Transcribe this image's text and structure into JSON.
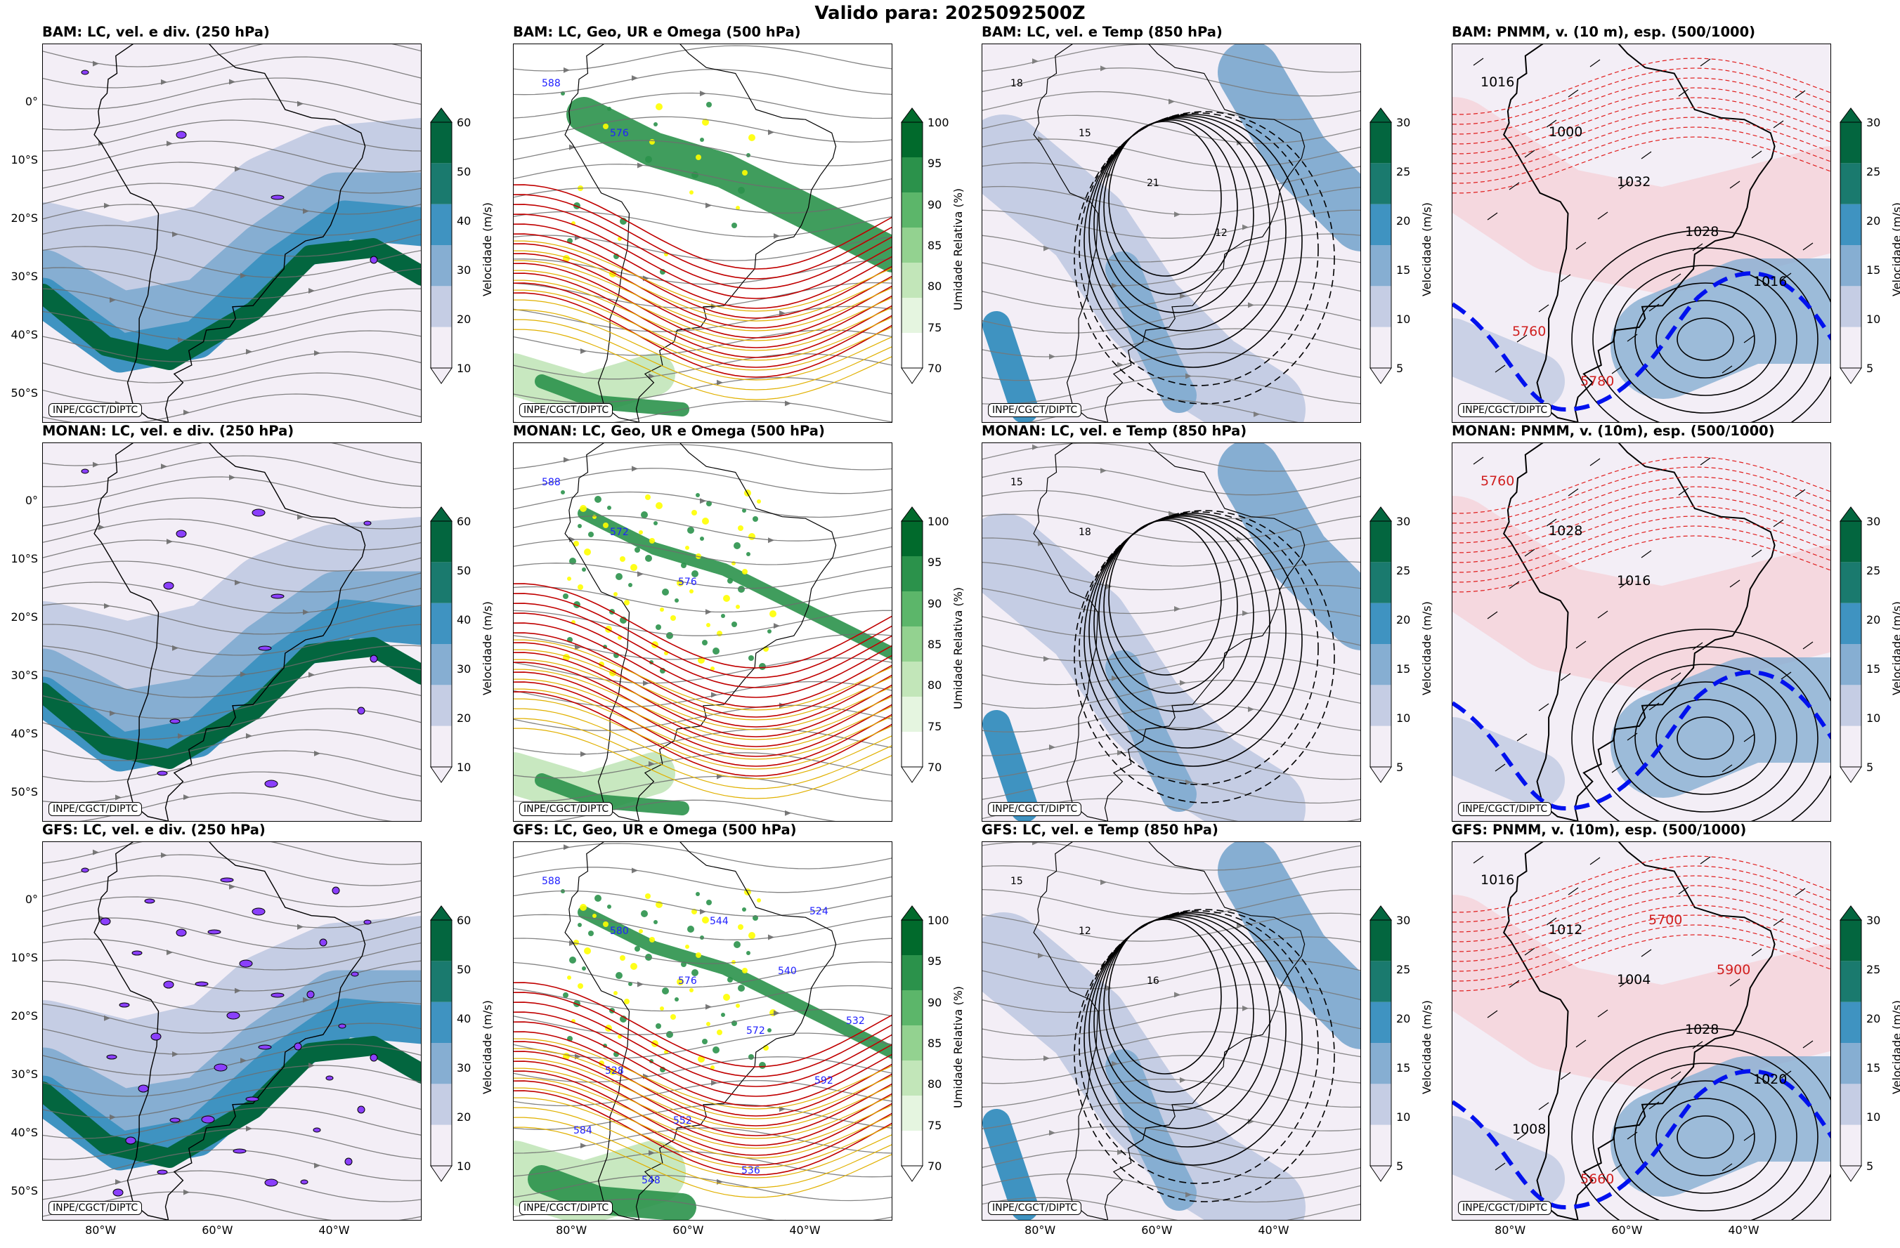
{
  "suptitle": "Valido para: 2025092500Z",
  "credit": "INPE/CGCT/DIPTC",
  "lat_ticks": [
    "0°",
    "10°S",
    "20°S",
    "30°S",
    "40°S",
    "50°S"
  ],
  "lon_ticks": [
    "80°W",
    "60°W",
    "40°W"
  ],
  "panels": [
    {
      "title": "BAM: LC, vel. e div. (250 hPa)",
      "kind": "wind250"
    },
    {
      "title": "BAM: LC, Geo, UR e Omega (500 hPa)",
      "kind": "geo500"
    },
    {
      "title": "BAM: LC, vel. e Temp (850 hPa)",
      "kind": "temp850"
    },
    {
      "title": "BAM: PNMM, v. (10 m), esp. (500/1000)",
      "kind": "pnmm"
    },
    {
      "title": "MONAN: LC, vel. e div. (250 hPa)",
      "kind": "wind250"
    },
    {
      "title": "MONAN: LC, Geo, UR e Omega (500 hPa)",
      "kind": "geo500"
    },
    {
      "title": "MONAN: LC, vel. e Temp (850 hPa)",
      "kind": "temp850"
    },
    {
      "title": "MONAN: PNMM, v. (10m), esp. (500/1000)",
      "kind": "pnmm"
    },
    {
      "title": "GFS: LC, vel. e div. (250 hPa)",
      "kind": "wind250"
    },
    {
      "title": "GFS: LC, Geo, UR e Omega (500 hPa)",
      "kind": "geo500"
    },
    {
      "title": "GFS: LC, vel. e Temp (850 hPa)",
      "kind": "temp850"
    },
    {
      "title": "GFS: PNMM, v. (10m), esp. (500/1000)",
      "kind": "pnmm"
    }
  ],
  "colorbars": {
    "wind250": {
      "label": "Velocidade (m/s)",
      "ticks": [
        "10",
        "20",
        "30",
        "40",
        "50",
        "60"
      ],
      "colors": [
        "#f3eef6",
        "#c5cde4",
        "#86aed2",
        "#3f93c1",
        "#1a7a6e",
        "#03663f"
      ]
    },
    "geo500": {
      "label": "Umidade Relativa (%)",
      "ticks": [
        "70",
        "75",
        "80",
        "85",
        "90",
        "95",
        "100"
      ],
      "colors": [
        "#ffffff",
        "#e5f5e0",
        "#c2e6b9",
        "#93d290",
        "#5cb66a",
        "#2b924b",
        "#016a2c"
      ]
    },
    "temp850": {
      "label": "Velocidade (m/s)",
      "ticks": [
        "5",
        "10",
        "15",
        "20",
        "25",
        "30"
      ],
      "colors": [
        "#f3eef6",
        "#c5cde4",
        "#86aed2",
        "#3f93c1",
        "#1a7a6e",
        "#03663f"
      ]
    },
    "pnmm": {
      "label": "Velocidade (m/s)",
      "ticks": [
        "5",
        "10",
        "15",
        "20",
        "25",
        "30"
      ],
      "colors": [
        "#f3eef6",
        "#c5cde4",
        "#86aed2",
        "#3f93c1",
        "#1a7a6e",
        "#03663f"
      ]
    }
  },
  "chart_data": [
    {
      "type": "heatmap",
      "title": "BAM: LC, vel. e div. (250 hPa)",
      "colorbar": "Velocidade (m/s)",
      "levels": [
        10,
        20,
        30,
        40,
        50,
        60
      ],
      "lon_range": [
        -90,
        -25
      ],
      "lat_range": [
        -55,
        10
      ],
      "features": [
        "streamlines",
        "jet 30°S-50°S",
        "divergence contours"
      ]
    },
    {
      "type": "heatmap",
      "title": "BAM: LC, Geo, UR e Omega (500 hPa)",
      "colorbar": "Umidade Relativa (%)",
      "levels": [
        70,
        75,
        80,
        85,
        90,
        95,
        100
      ],
      "contour_labels": [
        "588",
        "576"
      ]
    },
    {
      "type": "heatmap",
      "title": "BAM: LC, vel. e Temp (850 hPa)",
      "colorbar": "Velocidade (m/s)",
      "levels": [
        5,
        10,
        15,
        20,
        25,
        30
      ],
      "contour_labels": [
        "18",
        "15",
        "21",
        "12"
      ]
    },
    {
      "type": "heatmap",
      "title": "BAM: PNMM, v. (10 m), esp. (500/1000)",
      "colorbar": "Velocidade (m/s)",
      "levels": [
        5,
        10,
        15,
        20,
        25,
        30
      ],
      "contour_labels": [
        "1016",
        "1000",
        "1032",
        "1028",
        "1016",
        "5760",
        "5780"
      ]
    },
    {
      "type": "heatmap",
      "title": "MONAN: LC, vel. e div. (250 hPa)",
      "colorbar": "Velocidade (m/s)",
      "levels": [
        10,
        20,
        30,
        40,
        50,
        60
      ]
    },
    {
      "type": "heatmap",
      "title": "MONAN: LC, Geo, UR e Omega (500 hPa)",
      "colorbar": "Umidade Relativa (%)",
      "levels": [
        70,
        75,
        80,
        85,
        90,
        95,
        100
      ],
      "contour_labels": [
        "588",
        "572",
        "576"
      ]
    },
    {
      "type": "heatmap",
      "title": "MONAN: LC, vel. e Temp (850 hPa)",
      "colorbar": "Velocidade (m/s)",
      "levels": [
        5,
        10,
        15,
        20,
        25,
        30
      ],
      "contour_labels": [
        "15",
        "18"
      ]
    },
    {
      "type": "heatmap",
      "title": "MONAN: PNMM, v. (10m), esp. (500/1000)",
      "colorbar": "Velocidade (m/s)",
      "levels": [
        5,
        10,
        15,
        20,
        25,
        30
      ],
      "contour_labels": [
        "5760",
        "1028",
        "1016"
      ]
    },
    {
      "type": "heatmap",
      "title": "GFS: LC, vel. e div. (250 hPa)",
      "colorbar": "Velocidade (m/s)",
      "levels": [
        10,
        20,
        30,
        40,
        50,
        60
      ]
    },
    {
      "type": "heatmap",
      "title": "GFS: LC, Geo, UR e Omega (500 hPa)",
      "colorbar": "Umidade Relativa (%)",
      "levels": [
        70,
        75,
        80,
        85,
        90,
        95,
        100
      ],
      "contour_labels": [
        "588",
        "580",
        "576",
        "572",
        "592",
        "584",
        "548",
        "544",
        "540",
        "532",
        "528",
        "552",
        "536",
        "524"
      ]
    },
    {
      "type": "heatmap",
      "title": "GFS: LC, vel. e Temp (850 hPa)",
      "colorbar": "Velocidade (m/s)",
      "levels": [
        5,
        10,
        15,
        20,
        25,
        30
      ],
      "contour_labels": [
        "15",
        "12",
        "16"
      ]
    },
    {
      "type": "heatmap",
      "title": "GFS: PNMM, v. (10m), esp. (500/1000)",
      "colorbar": "Velocidade (m/s)",
      "levels": [
        5,
        10,
        15,
        20,
        25,
        30
      ],
      "contour_labels": [
        "1016",
        "1012",
        "1004",
        "1028",
        "1020",
        "1008",
        "5660",
        "5700",
        "5900"
      ]
    }
  ]
}
